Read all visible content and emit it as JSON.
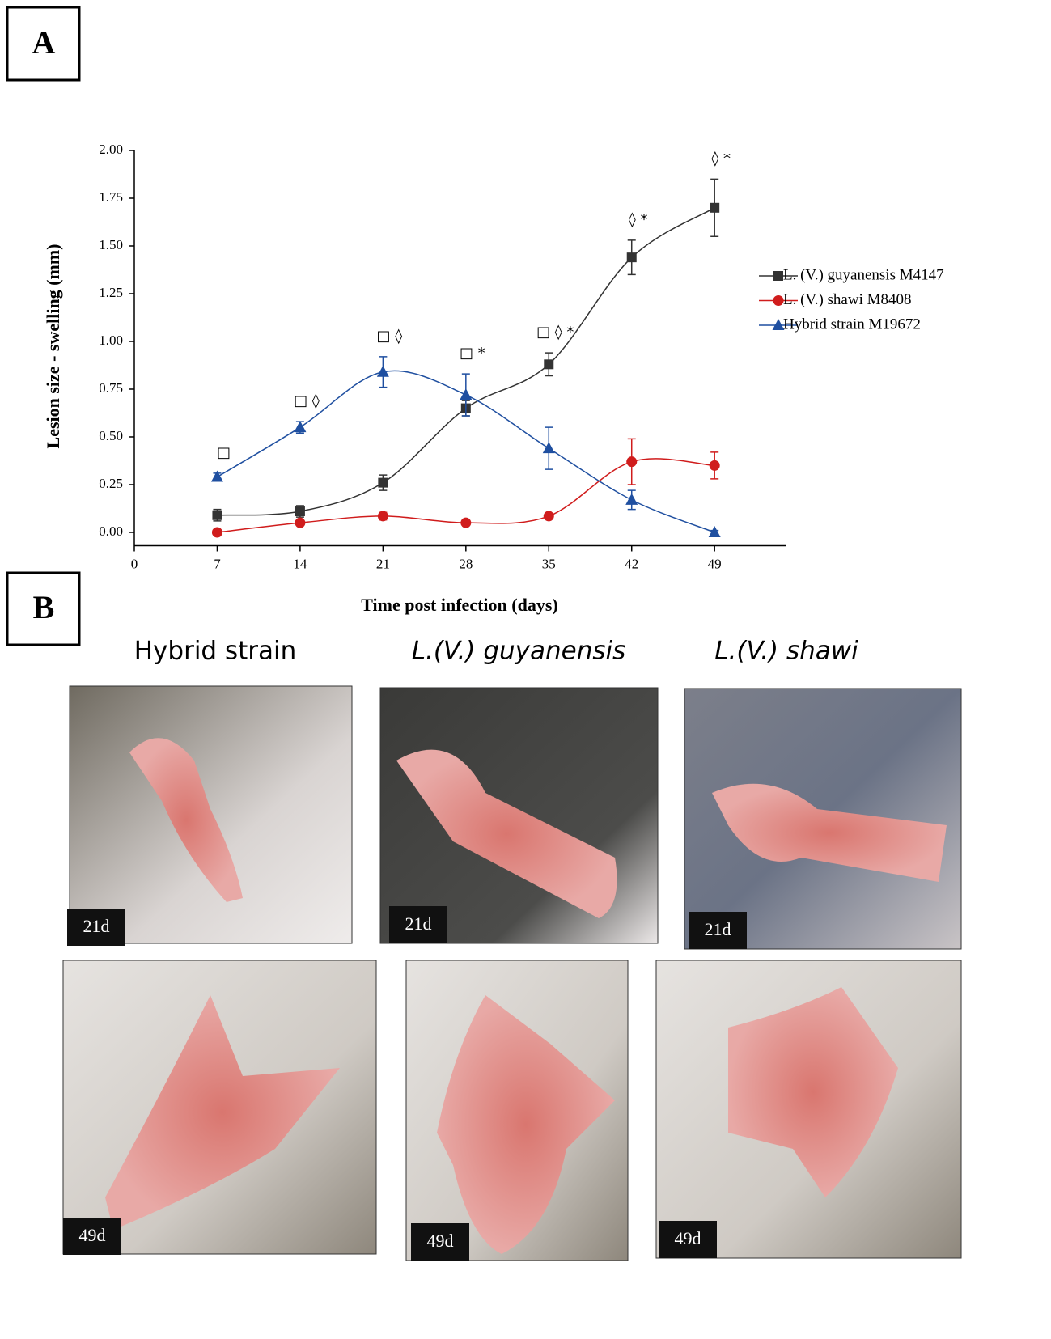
{
  "panel_labels": {
    "a": "A",
    "b": "B"
  },
  "chart_data": {
    "type": "line",
    "x": [
      7,
      14,
      21,
      28,
      35,
      42,
      49
    ],
    "series": [
      {
        "name": "L. (V.) guyanensis M4147",
        "color": "#333333",
        "marker": "square",
        "values": [
          0.09,
          0.11,
          0.26,
          0.65,
          0.88,
          1.44,
          1.7
        ],
        "errors": [
          0.03,
          0.03,
          0.04,
          0.04,
          0.06,
          0.09,
          0.15
        ]
      },
      {
        "name": "L. (V.) shawi M8408",
        "color": "#d01c1c",
        "marker": "circle",
        "values": [
          0.0,
          0.05,
          0.085,
          0.05,
          0.085,
          0.37,
          0.35
        ],
        "errors": [
          0.01,
          0.01,
          0.02,
          0.01,
          0.01,
          0.12,
          0.07
        ]
      },
      {
        "name": "Hybrid strain M19672",
        "color": "#1f4fa0",
        "marker": "triangle",
        "values": [
          0.29,
          0.55,
          0.84,
          0.72,
          0.44,
          0.17,
          0.0
        ],
        "errors": [
          0.02,
          0.03,
          0.08,
          0.11,
          0.11,
          0.05,
          0.01
        ]
      }
    ],
    "xlim": [
      0,
      55
    ],
    "xticks": [
      0,
      7,
      14,
      21,
      28,
      35,
      42,
      49
    ],
    "ylim": [
      -0.07,
      2.0
    ],
    "yticks": [
      {
        "value": 0,
        "label": "0.00"
      },
      {
        "value": 0.25,
        "label": "0.25"
      },
      {
        "value": 0.5,
        "label": "0.50"
      },
      {
        "value": 0.75,
        "label": "0.75"
      },
      {
        "value": 1,
        "label": "1.00"
      },
      {
        "value": 1.25,
        "label": "1.25"
      },
      {
        "value": 1.5,
        "label": "1.50"
      },
      {
        "value": 1.75,
        "label": "1.75"
      },
      {
        "value": 2,
        "label": "2.00"
      }
    ],
    "x_label": "Time post infection (days)",
    "y_label": "Lesion size - swelling (mm)",
    "annotations": [
      {
        "x": 7,
        "label": "□"
      },
      {
        "x": 14,
        "label": "□ ◊"
      },
      {
        "x": 21,
        "label": "□ ◊"
      },
      {
        "x": 28,
        "label": "□ *"
      },
      {
        "x": 35,
        "label": "□ ◊ *"
      },
      {
        "x": 42,
        "label": "◊ *"
      },
      {
        "x": 49,
        "label": "◊ *"
      }
    ]
  },
  "photos": {
    "columns": [
      "Hybrid strain",
      "L.(V.) guyanensis",
      "L.(V.) shawi"
    ],
    "row_labels": [
      [
        "21d",
        "21d",
        "21d"
      ],
      [
        "49d",
        "49d",
        "49d"
      ]
    ]
  }
}
